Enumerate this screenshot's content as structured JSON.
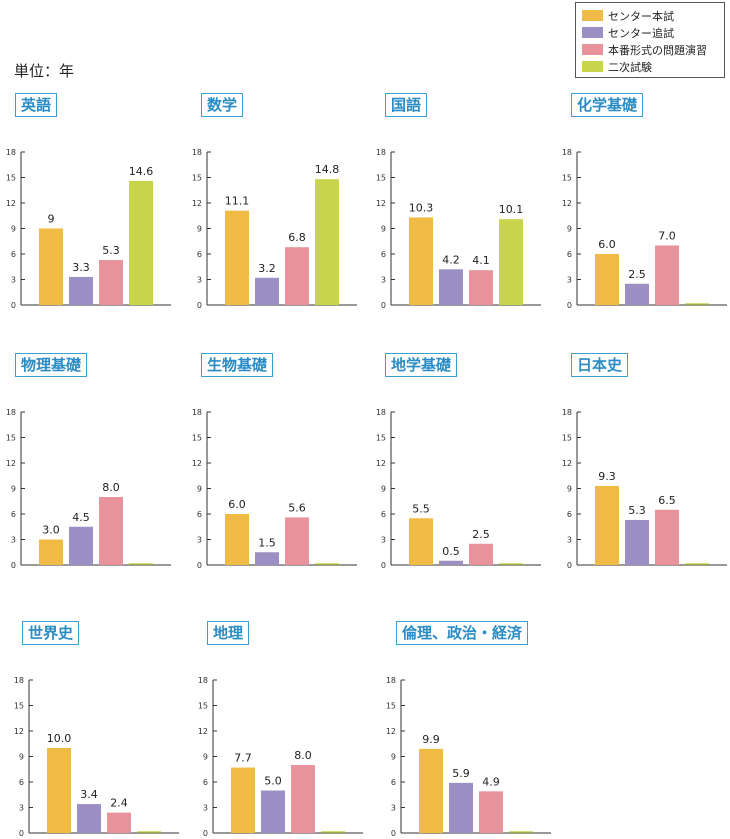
{
  "unit_label": "単位：年",
  "legend": [
    {
      "label": "センター本試",
      "color": "#f0bb44"
    },
    {
      "label": "センター追試",
      "color": "#9b8fc4"
    },
    {
      "label": "本番形式の問題演習",
      "color": "#e8929b"
    },
    {
      "label": "二次試験",
      "color": "#c8d44a"
    }
  ],
  "chart_data": [
    {
      "type": "bar",
      "title": "英語",
      "ylim": [
        0,
        18
      ],
      "yticks": [
        0,
        3,
        6,
        9,
        12,
        15,
        18
      ],
      "categories": [
        "センター本試",
        "センター追試",
        "本番形式の問題演習",
        "二次試験"
      ],
      "values": [
        9,
        3.3,
        5.3,
        14.6
      ],
      "labels": [
        "9",
        "3.3",
        "5.3",
        "14.6"
      ]
    },
    {
      "type": "bar",
      "title": "数学",
      "ylim": [
        0,
        18
      ],
      "yticks": [
        0,
        3,
        6,
        9,
        12,
        15,
        18
      ],
      "categories": [
        "センター本試",
        "センター追試",
        "本番形式の問題演習",
        "二次試験"
      ],
      "values": [
        11.1,
        3.2,
        6.8,
        14.8
      ],
      "labels": [
        "11.1",
        "3.2",
        "6.8",
        "14.8"
      ]
    },
    {
      "type": "bar",
      "title": "国語",
      "ylim": [
        0,
        18
      ],
      "yticks": [
        0,
        3,
        6,
        9,
        12,
        15,
        18
      ],
      "categories": [
        "センター本試",
        "センター追試",
        "本番形式の問題演習",
        "二次試験"
      ],
      "values": [
        10.3,
        4.2,
        4.1,
        10.1
      ],
      "labels": [
        "10.3",
        "4.2",
        "4.1",
        "10.1"
      ]
    },
    {
      "type": "bar",
      "title": "化学基礎",
      "ylim": [
        0,
        18
      ],
      "yticks": [
        0,
        3,
        6,
        9,
        12,
        15,
        18
      ],
      "categories": [
        "センター本試",
        "センター追試",
        "本番形式の問題演習",
        "二次試験"
      ],
      "values": [
        6.0,
        2.5,
        7.0,
        0
      ],
      "labels": [
        "6.0",
        "2.5",
        "7.0",
        ""
      ]
    },
    {
      "type": "bar",
      "title": "物理基礎",
      "ylim": [
        0,
        18
      ],
      "yticks": [
        0,
        3,
        6,
        9,
        12,
        15,
        18
      ],
      "categories": [
        "センター本試",
        "センター追試",
        "本番形式の問題演習",
        "二次試験"
      ],
      "values": [
        3.0,
        4.5,
        8.0,
        0
      ],
      "labels": [
        "3.0",
        "4.5",
        "8.0",
        ""
      ]
    },
    {
      "type": "bar",
      "title": "生物基礎",
      "ylim": [
        0,
        18
      ],
      "yticks": [
        0,
        3,
        6,
        9,
        12,
        15,
        18
      ],
      "categories": [
        "センター本試",
        "センター追試",
        "本番形式の問題演習",
        "二次試験"
      ],
      "values": [
        6.0,
        1.5,
        5.6,
        0
      ],
      "labels": [
        "6.0",
        "1.5",
        "5.6",
        ""
      ]
    },
    {
      "type": "bar",
      "title": "地学基礎",
      "ylim": [
        0,
        18
      ],
      "yticks": [
        0,
        3,
        6,
        9,
        12,
        15,
        18
      ],
      "categories": [
        "センター本試",
        "センター追試",
        "本番形式の問題演習",
        "二次試験"
      ],
      "values": [
        5.5,
        0.5,
        2.5,
        0
      ],
      "labels": [
        "5.5",
        "0.5",
        "2.5",
        ""
      ]
    },
    {
      "type": "bar",
      "title": "日本史",
      "ylim": [
        0,
        18
      ],
      "yticks": [
        0,
        3,
        6,
        9,
        12,
        15,
        18
      ],
      "categories": [
        "センター本試",
        "センター追試",
        "本番形式の問題演習",
        "二次試験"
      ],
      "values": [
        9.3,
        5.3,
        6.5,
        0
      ],
      "labels": [
        "9.3",
        "5.3",
        "6.5",
        ""
      ]
    },
    {
      "type": "bar",
      "title": "世界史",
      "ylim": [
        0,
        18
      ],
      "yticks": [
        0,
        3,
        6,
        9,
        12,
        15,
        18
      ],
      "categories": [
        "センター本試",
        "センター追試",
        "本番形式の問題演習",
        "二次試験"
      ],
      "values": [
        10.0,
        3.4,
        2.4,
        0
      ],
      "labels": [
        "10.0",
        "3.4",
        "2.4",
        ""
      ]
    },
    {
      "type": "bar",
      "title": "地理",
      "ylim": [
        0,
        18
      ],
      "yticks": [
        0,
        3,
        6,
        9,
        12,
        15,
        18
      ],
      "categories": [
        "センター本試",
        "センター追試",
        "本番形式の問題演習",
        "二次試験"
      ],
      "values": [
        7.7,
        5.0,
        8.0,
        0
      ],
      "labels": [
        "7.7",
        "5.0",
        "8.0",
        ""
      ]
    },
    {
      "type": "bar",
      "title": "倫理、政治・経済",
      "ylim": [
        0,
        18
      ],
      "yticks": [
        0,
        3,
        6,
        9,
        12,
        15,
        18
      ],
      "categories": [
        "センター本試",
        "センター追試",
        "本番形式の問題演習",
        "二次試験"
      ],
      "values": [
        9.9,
        5.9,
        4.9,
        0
      ],
      "labels": [
        "9.9",
        "5.9",
        "4.9",
        ""
      ]
    }
  ]
}
